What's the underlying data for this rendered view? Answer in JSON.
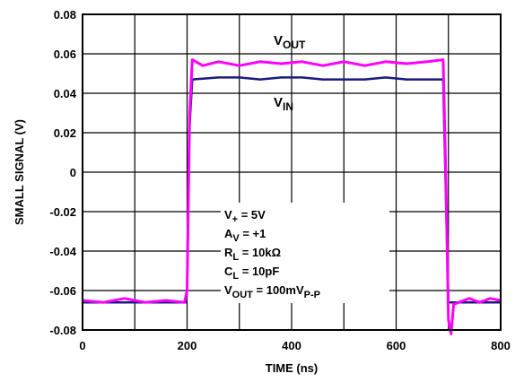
{
  "chart_data": {
    "type": "line",
    "xlabel": "TIME (ns)",
    "ylabel": "SMALL SIGNAL (V)",
    "xlim": [
      0,
      800
    ],
    "ylim": [
      -0.08,
      0.08
    ],
    "x_ticks": [
      0,
      200,
      400,
      600,
      800
    ],
    "x_tick_labels": [
      "0",
      "200",
      "400",
      "600",
      "800"
    ],
    "y_ticks": [
      0.08,
      0.06,
      0.04,
      0.02,
      0,
      -0.02,
      -0.04,
      -0.06,
      -0.08
    ],
    "y_tick_labels": [
      "0.08",
      "0.06",
      "0.04",
      "0.02",
      "0",
      "-0.02",
      "-0.04",
      "-0.06",
      "-0.08"
    ],
    "grid": true,
    "series": [
      {
        "name": "VOUT",
        "color": "#ff00ff",
        "x": [
          0,
          40,
          80,
          120,
          160,
          195,
          200,
          205,
          210,
          230,
          260,
          300,
          340,
          380,
          420,
          460,
          500,
          540,
          580,
          620,
          660,
          690,
          695,
          700,
          705,
          710,
          720,
          740,
          760,
          780,
          800
        ],
        "y": [
          -0.065,
          -0.066,
          -0.064,
          -0.066,
          -0.065,
          -0.066,
          -0.06,
          0.03,
          0.057,
          0.054,
          0.056,
          0.054,
          0.056,
          0.055,
          0.056,
          0.054,
          0.056,
          0.054,
          0.056,
          0.055,
          0.056,
          0.057,
          0.0,
          -0.075,
          -0.082,
          -0.067,
          -0.066,
          -0.064,
          -0.066,
          -0.064,
          -0.065
        ]
      },
      {
        "name": "VIN",
        "color": "#1a1a80",
        "x": [
          0,
          40,
          80,
          120,
          160,
          198,
          200,
          204,
          210,
          260,
          300,
          340,
          380,
          420,
          460,
          500,
          540,
          580,
          620,
          660,
          690,
          694,
          700,
          720,
          760,
          800
        ],
        "y": [
          -0.066,
          -0.066,
          -0.066,
          -0.066,
          -0.066,
          -0.066,
          -0.06,
          0.02,
          0.047,
          0.048,
          0.048,
          0.047,
          0.048,
          0.048,
          0.047,
          0.047,
          0.047,
          0.048,
          0.047,
          0.047,
          0.047,
          0.0,
          -0.066,
          -0.066,
          -0.066,
          -0.066
        ]
      }
    ],
    "annotations": {
      "vout_label": {
        "main": "V",
        "sub": "OUT"
      },
      "vin_label": {
        "main": "V",
        "sub": "IN"
      },
      "conditions": [
        {
          "main": "V",
          "sub": "+",
          "rest": " = 5V"
        },
        {
          "main": "A",
          "sub": "V",
          "rest": " = +1"
        },
        {
          "main": "R",
          "sub": "L",
          "rest": " = 10kΩ"
        },
        {
          "main": "C",
          "sub": "L",
          "rest": " = 10pF"
        },
        {
          "main": "V",
          "sub": "OUT",
          "rest": " = 100mV",
          "sub2": "P-P"
        }
      ]
    }
  }
}
